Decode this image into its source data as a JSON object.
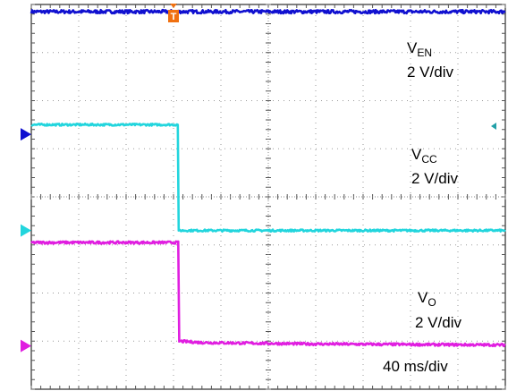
{
  "chart_data": {
    "type": "line",
    "title": "",
    "xlabel": "",
    "ylabel": "",
    "grid": true,
    "divisions": {
      "x": 10,
      "y": 8
    },
    "x_scale_label": "40 ms/div",
    "trigger_marker": "T",
    "trigger_at_div": 3.1,
    "series": [
      {
        "name": "EN",
        "label_main": "V",
        "label_sub": "EN",
        "scale_label": "2 V/div",
        "color": "#1010d0",
        "ground_at_div": 5.3,
        "points_div": [
          [
            0,
            7.85
          ],
          [
            10,
            7.85
          ]
        ],
        "noise": 0.035
      },
      {
        "name": "CC",
        "label_main": "V",
        "label_sub": "CC",
        "scale_label": "2 V/div",
        "color": "#22d5dd",
        "ground_at_div": 3.3,
        "points_div": [
          [
            0,
            5.5
          ],
          [
            3.09,
            5.5
          ],
          [
            3.11,
            3.3
          ],
          [
            10,
            3.3
          ]
        ],
        "noise": 0.02
      },
      {
        "name": "O",
        "label_main": "V",
        "label_sub": "O",
        "scale_label": "2 V/div",
        "color": "#e01ee0",
        "ground_at_div": 0.9,
        "points_div": [
          [
            0,
            3.05
          ],
          [
            3.1,
            3.05
          ],
          [
            3.12,
            1.0
          ],
          [
            3.6,
            0.97
          ],
          [
            6,
            0.94
          ],
          [
            10,
            0.92
          ]
        ],
        "noise": 0.025
      }
    ]
  }
}
